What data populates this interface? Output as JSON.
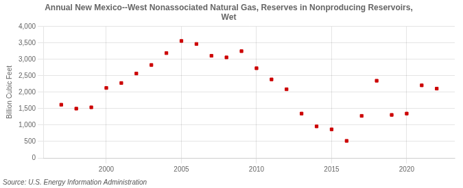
{
  "chart_data": {
    "type": "scatter",
    "title": "Annual New Mexico--West Nonassociated Natural Gas, Reserves in Nonproducing Reservoirs,\nWet",
    "ylabel": "Billion Cubic Feet",
    "annotations": [
      "Source: U.S. Energy Information Administration"
    ],
    "x": [
      1997,
      1998,
      1999,
      2000,
      2001,
      2002,
      2003,
      2004,
      2005,
      2006,
      2007,
      2008,
      2009,
      2010,
      2011,
      2012,
      2013,
      2014,
      2015,
      2016,
      2017,
      2018,
      2019,
      2020,
      2021,
      2022
    ],
    "values": [
      1620,
      1500,
      1540,
      2130,
      2280,
      2570,
      2830,
      3190,
      3560,
      3470,
      3110,
      3060,
      3250,
      2730,
      2390,
      2090,
      1350,
      960,
      870,
      520,
      1280,
      2350,
      1310,
      1350,
      2210,
      2110
    ],
    "color": "#cc0000",
    "marker": "square",
    "xlim": [
      1995.8,
      2023.2
    ],
    "xticks": [
      2000,
      2005,
      2010,
      2015,
      2020
    ],
    "ylim": [
      0,
      4000
    ],
    "yticks": [
      0,
      500,
      {
        "value": 1000,
        "label": "1,000"
      },
      {
        "value": 1500,
        "label": "1,500"
      },
      {
        "value": 2000,
        "label": "2,000"
      },
      {
        "value": 2500,
        "label": "2,500"
      },
      {
        "value": 3000,
        "label": "3,000"
      },
      {
        "value": 3500,
        "label": "3,500"
      },
      {
        "value": 4000,
        "label": "4,000"
      }
    ],
    "grid": true
  }
}
